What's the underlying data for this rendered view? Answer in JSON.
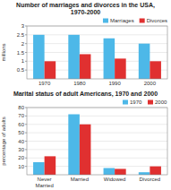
{
  "chart_data": [
    {
      "type": "bar",
      "title": "Number of marriages and divorces in the USA,\n1970-2000",
      "categories": [
        "1970",
        "1980",
        "1990",
        "2000"
      ],
      "series": [
        {
          "name": "Marriages",
          "color": "#4db8e8",
          "values": [
            2.5,
            2.5,
            2.3,
            2.0
          ]
        },
        {
          "name": "Divorces",
          "color": "#e03030",
          "values": [
            1.0,
            1.4,
            1.15,
            1.0
          ]
        }
      ],
      "ylabel": "millions",
      "ylim": [
        0,
        3
      ],
      "yticks": [
        0.5,
        1.0,
        1.5,
        2.0,
        2.5,
        3.0
      ],
      "grid": true,
      "legend": "upper-right"
    },
    {
      "type": "bar",
      "title": "Marital status of adult Americans, 1970 and 2000",
      "categories": [
        "Never\nMarried",
        "Married",
        "Widowed",
        "Divorced"
      ],
      "series": [
        {
          "name": "1970",
          "color": "#4db8e8",
          "values": [
            15,
            72,
            8,
            3
          ]
        },
        {
          "name": "2000",
          "color": "#e03030",
          "values": [
            22,
            60,
            7,
            10
          ]
        }
      ],
      "ylabel": "percentage of adults",
      "ylim": [
        0,
        80
      ],
      "yticks": [
        10,
        20,
        30,
        40,
        50,
        60,
        70,
        80
      ],
      "grid": true,
      "legend": "upper-right"
    }
  ]
}
